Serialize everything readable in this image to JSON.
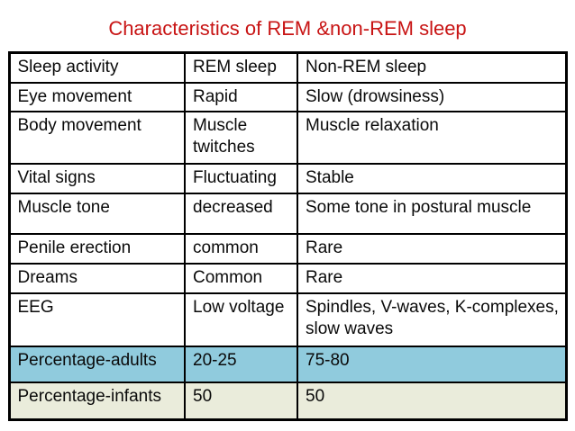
{
  "title": "Characteristics of REM &non-REM sleep",
  "colors": {
    "title": "#c81414",
    "border": "#000000",
    "page_bg": "#ffffff",
    "adults_row_bg": "#90cbdd",
    "infants_row_bg": "#eaecdb"
  },
  "table": {
    "headers": [
      "Sleep activity",
      "REM sleep",
      "Non-REM sleep"
    ],
    "rows": [
      {
        "label": "Eye movement",
        "rem": "Rapid",
        "nrem": "Slow (drowsiness)",
        "highlight": "none"
      },
      {
        "label": "Body movement",
        "rem": "Muscle twitches",
        "nrem": "Muscle relaxation",
        "highlight": "none"
      },
      {
        "label": "Vital signs",
        "rem": "Fluctuating",
        "nrem": "Stable",
        "highlight": "none"
      },
      {
        "label": "Muscle tone",
        "rem": "decreased",
        "nrem": "Some tone in postural muscle",
        "highlight": "none"
      },
      {
        "label": "Penile erection",
        "rem": "common",
        "nrem": "Rare",
        "highlight": "none"
      },
      {
        "label": "Dreams",
        "rem": "Common",
        "nrem": "Rare",
        "highlight": "none"
      },
      {
        "label": "EEG",
        "rem": "Low voltage",
        "nrem": "Spindles, V-waves, K-complexes, slow waves",
        "highlight": "none"
      },
      {
        "label": "Percentage-adults",
        "rem": "20-25",
        "nrem": "75-80",
        "highlight": "blue"
      },
      {
        "label": "Percentage-infants",
        "rem": "50",
        "nrem": "50",
        "highlight": "green"
      }
    ]
  }
}
